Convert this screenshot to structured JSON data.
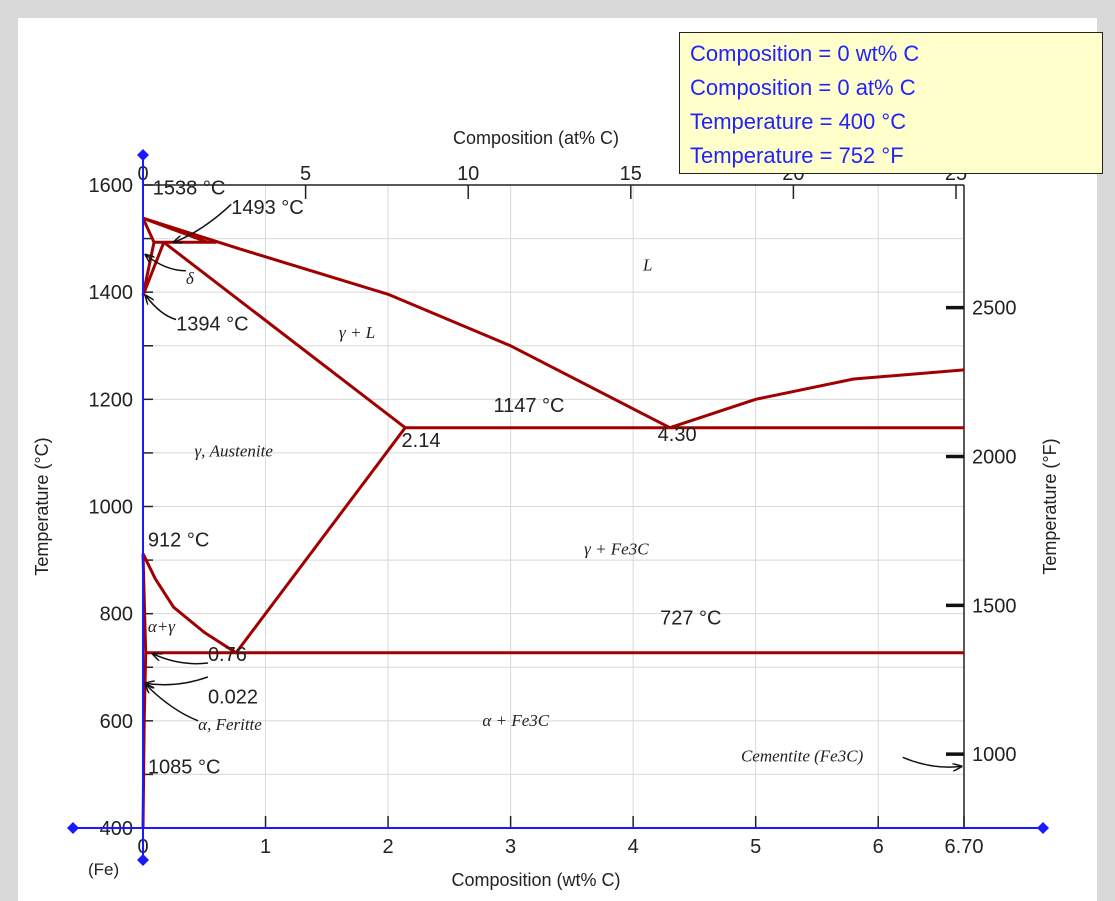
{
  "readout": {
    "composition_wt": "Composition = 0 wt% C",
    "composition_at": "Composition = 0 at% C",
    "temperature_c": "Temperature = 400 °C",
    "temperature_f": "Temperature = 752 °F"
  },
  "colors": {
    "curve": "#a00000",
    "cursor": "#1a1aff",
    "readout_bg": "#ffffcc",
    "readout_text": "#2222ff"
  },
  "chart_data": {
    "type": "line",
    "xlabel": "Composition (wt% C)",
    "x2label": "Composition (at% C)",
    "ylabel": "Temperature (°C)",
    "y2label": "Temperature (°F)",
    "xlim": [
      0,
      6.7
    ],
    "ylim": [
      400,
      1600
    ],
    "grid": true,
    "x_ticks": [
      {
        "v": 0,
        "t": "0"
      },
      {
        "v": 1,
        "t": "1"
      },
      {
        "v": 2,
        "t": "2"
      },
      {
        "v": 3,
        "t": "3"
      },
      {
        "v": 4,
        "t": "4"
      },
      {
        "v": 5,
        "t": "5"
      },
      {
        "v": 6,
        "t": "6"
      },
      {
        "v": 6.7,
        "t": "6.70"
      }
    ],
    "x_origin_label": "(Fe)",
    "y_ticks": [
      {
        "v": 400,
        "t": "400"
      },
      {
        "v": 600,
        "t": "600"
      },
      {
        "v": 800,
        "t": "800"
      },
      {
        "v": 1000,
        "t": "1000"
      },
      {
        "v": 1200,
        "t": "1200"
      },
      {
        "v": 1400,
        "t": "1400"
      },
      {
        "v": 1600,
        "t": "1600"
      }
    ],
    "x2_ticks": [
      {
        "v": 0,
        "t": "0"
      },
      {
        "v": 5,
        "t": "5"
      },
      {
        "v": 10,
        "t": "10"
      },
      {
        "v": 15,
        "t": "15"
      },
      {
        "v": 20,
        "t": "20"
      },
      {
        "v": 25,
        "t": "25"
      }
    ],
    "y2_ticks": [
      {
        "v": 2500,
        "t": "2500"
      },
      {
        "v": 2000,
        "t": "2000"
      },
      {
        "v": 1500,
        "t": "1500"
      },
      {
        "v": 1000,
        "t": "1000"
      }
    ],
    "cursor": {
      "x": 0,
      "y": 400
    },
    "series": [
      {
        "points": [
          [
            0,
            1538
          ],
          [
            0.09,
            1493
          ],
          [
            0,
            1394
          ]
        ]
      },
      {
        "points": [
          [
            0,
            1538
          ],
          [
            0.53,
            1493
          ]
        ]
      },
      {
        "points": [
          [
            0.09,
            1493
          ],
          [
            0.6,
            1493
          ]
        ]
      },
      {
        "points": [
          [
            0.17,
            1493
          ],
          [
            0,
            1394
          ]
        ]
      },
      {
        "points": [
          [
            0,
            1538
          ],
          [
            0.8,
            1480
          ],
          [
            2.0,
            1396
          ],
          [
            3.0,
            1300
          ],
          [
            4.3,
            1147
          ]
        ]
      },
      {
        "points": [
          [
            0.17,
            1493
          ],
          [
            2.14,
            1147
          ]
        ]
      },
      {
        "points": [
          [
            2.14,
            1147
          ],
          [
            0.76,
            727
          ]
        ]
      },
      {
        "points": [
          [
            0,
            912
          ],
          [
            0.1,
            865
          ],
          [
            0.25,
            812
          ],
          [
            0.5,
            765
          ],
          [
            0.76,
            727
          ]
        ]
      },
      {
        "points": [
          [
            0,
            912
          ],
          [
            0.022,
            727
          ],
          [
            0.01,
            600
          ],
          [
            0,
            400
          ]
        ]
      },
      {
        "points": [
          [
            0.022,
            727
          ],
          [
            6.7,
            727
          ]
        ]
      },
      {
        "points": [
          [
            2.14,
            1147
          ],
          [
            6.7,
            1147
          ]
        ]
      },
      {
        "points": [
          [
            4.3,
            1147
          ],
          [
            5.0,
            1200
          ],
          [
            5.8,
            1238
          ],
          [
            6.7,
            1255
          ]
        ]
      }
    ],
    "annotations": [
      {
        "t": "1538 °C",
        "x": 0.08,
        "y": 1582
      },
      {
        "t": "1493 °C",
        "x": 0.72,
        "y": 1546
      },
      {
        "t": "δ",
        "x": 0.35,
        "y": 1415,
        "serif": true
      },
      {
        "t": "1394 °C",
        "x": 0.27,
        "y": 1328
      },
      {
        "t": "L",
        "x": 4.08,
        "y": 1440,
        "serif": true
      },
      {
        "t": "γ + L",
        "x": 1.6,
        "y": 1314,
        "serif": true
      },
      {
        "t": "1147 °C",
        "x": 2.86,
        "y": 1176
      },
      {
        "t": "2.14",
        "x": 2.11,
        "y": 1111
      },
      {
        "t": "4.30",
        "x": 4.2,
        "y": 1122
      },
      {
        "t": "γ, Austenite",
        "x": 0.42,
        "y": 1093,
        "serif": true
      },
      {
        "t": "912 °C",
        "x": 0.04,
        "y": 925
      },
      {
        "t": "γ + Fe3C",
        "x": 3.6,
        "y": 910,
        "serif": true
      },
      {
        "t": "α+γ",
        "x": 0.04,
        "y": 766,
        "serif": true
      },
      {
        "t": "727 °C",
        "x": 4.22,
        "y": 780
      },
      {
        "t": "0.76",
        "x": 0.53,
        "y": 712
      },
      {
        "t": "0.022",
        "x": 0.53,
        "y": 632
      },
      {
        "t": "α, Feritte",
        "x": 0.45,
        "y": 583,
        "serif": true
      },
      {
        "t": "α + Fe3C",
        "x": 2.77,
        "y": 590,
        "serif": true
      },
      {
        "t": "1085 °C",
        "x": 0.04,
        "y": 502
      },
      {
        "t": "Cementite (Fe3C)",
        "x": 4.88,
        "y": 524,
        "serif": true
      }
    ],
    "arrows": [
      {
        "from": [
          0.72,
          1564
        ],
        "to": [
          0.25,
          1493
        ]
      },
      {
        "from": [
          0.35,
          1440
        ],
        "to": [
          0.02,
          1470
        ]
      },
      {
        "from": [
          0.27,
          1349
        ],
        "to": [
          0.02,
          1394
        ]
      },
      {
        "from": [
          0.53,
          708
        ],
        "to": [
          0.08,
          725
        ]
      },
      {
        "from": [
          0.53,
          682
        ],
        "to": [
          0.02,
          670
        ]
      },
      {
        "from": [
          0.45,
          600
        ],
        "to": [
          0.02,
          668
        ]
      },
      {
        "from": [
          6.2,
          532
        ],
        "to": [
          6.68,
          515
        ]
      }
    ]
  }
}
